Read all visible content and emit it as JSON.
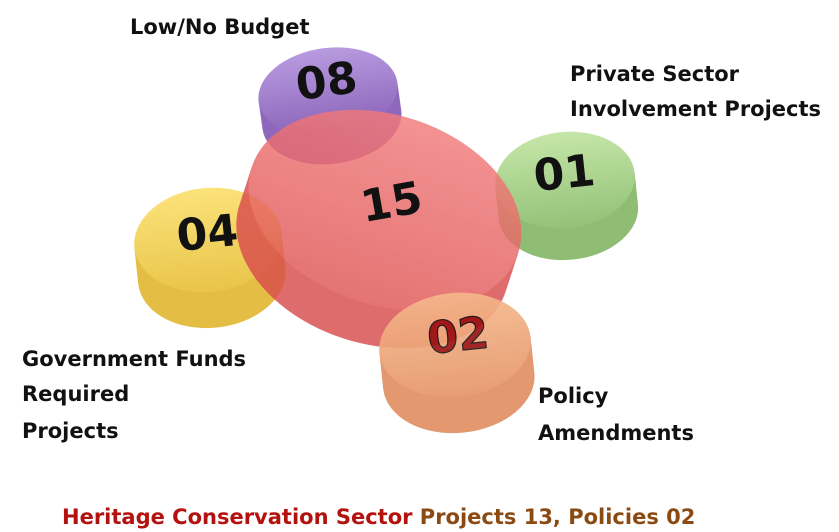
{
  "nodes": [
    {
      "number": "15"
    },
    {
      "number": "08",
      "label": [
        "Low/No Budget"
      ]
    },
    {
      "number": "01",
      "label": [
        "Private Sector",
        "Involvement Projects"
      ]
    },
    {
      "number": "04",
      "label": [
        "Government Funds",
        "Required",
        "Projects"
      ]
    },
    {
      "number": "02",
      "label": [
        "Policy",
        "Amendments"
      ]
    }
  ],
  "footer": {
    "sector": "Heritage Conservation Sector",
    "summary": "Projects 13, Policies 02"
  }
}
